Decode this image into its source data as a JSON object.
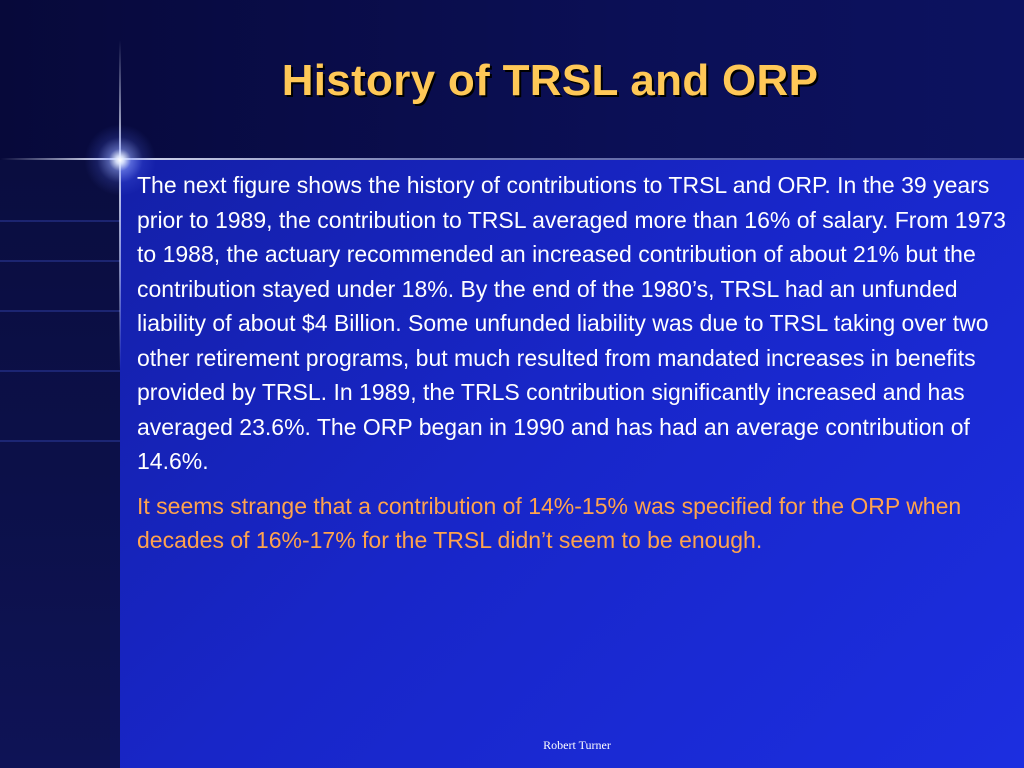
{
  "slide": {
    "title": "History of TRSL and ORP",
    "paragraphs": [
      "The next figure shows the history of contributions to TRSL and ORP. In the 39 years prior to 1989, the contribution to TRSL averaged more than 16% of salary. From 1973 to 1988, the actuary recommended an increased contribution of about 21% but the contribution stayed under 18%. By the end of the 1980’s, TRSL had an unfunded liability of about $4 Billion. Some unfunded liability was due to TRSL taking over two other retirement programs, but much resulted from mandated increases in benefits provided by TRSL. In 1989, the TRLS contribution significantly increased and has averaged 23.6%. The ORP began in 1990 and has had an average contribution of 14.6%.",
      "It seems strange that a contribution of 14%-15% was specified for the ORP when decades of 16%-17% for the TRSL didn’t seem to be enough."
    ],
    "footer": "Robert Turner"
  },
  "colors": {
    "title": "#ffc857",
    "body_text": "#ffffff",
    "highlight_text": "#ffa34d",
    "background_dark": "#0b0e52",
    "background_bright": "#1a2ad8"
  },
  "icons": {
    "decoration": "star-flare-icon"
  }
}
